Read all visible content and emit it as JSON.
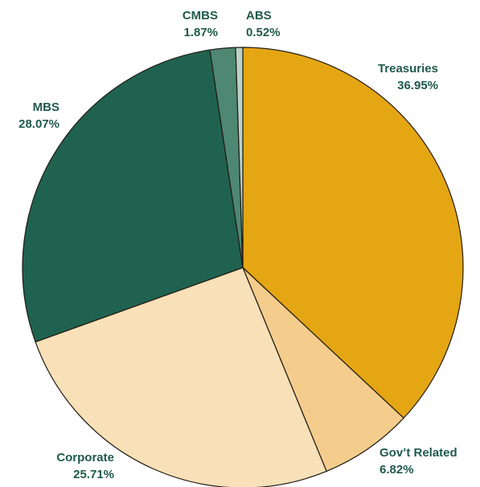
{
  "chart_data": {
    "type": "pie",
    "start_angle_deg": 0,
    "direction": "clockwise",
    "legend": "none",
    "slices": [
      {
        "name": "Treasuries",
        "value": 36.95,
        "color": "#E5A614"
      },
      {
        "name": "Gov’t Related",
        "value": 6.82,
        "color": "#F4CD8D"
      },
      {
        "name": "Corporate",
        "value": 25.71,
        "color": "#F8E0B8"
      },
      {
        "name": "MBS",
        "value": 28.07,
        "color": "#206250"
      },
      {
        "name": "CMBS",
        "value": 1.87,
        "color": "#4E8774"
      },
      {
        "name": "ABS",
        "value": 0.52,
        "color": "#B9D3C9"
      }
    ],
    "labels": [
      {
        "name": "Treasuries",
        "value_text": "36.95%"
      },
      {
        "name": "Gov’t Related",
        "value_text": "6.82%"
      },
      {
        "name": "Corporate",
        "value_text": "25.71%"
      },
      {
        "name": "MBS",
        "value_text": "28.07%"
      },
      {
        "name": "CMBS",
        "value_text": "1.87%"
      },
      {
        "name": "ABS",
        "value_text": "0.52%"
      }
    ],
    "label_color": "#1F5A49"
  }
}
